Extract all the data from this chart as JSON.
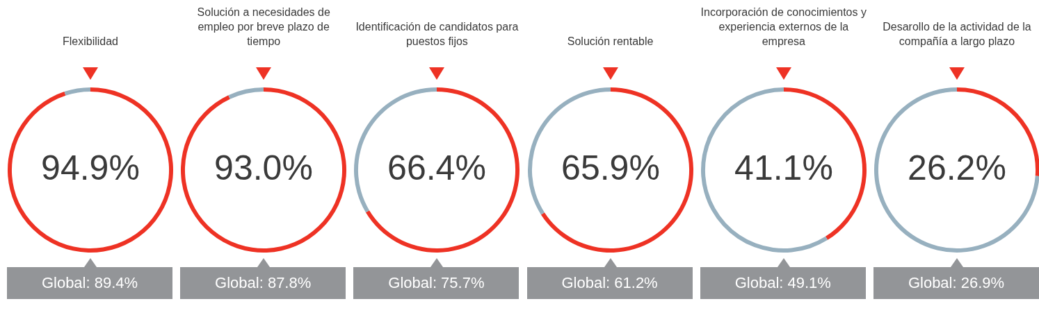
{
  "chart_data": [
    {
      "type": "donut",
      "title": "Flexibilidad",
      "categories": [
        null,
        null
      ],
      "values": [
        94.9,
        5.1
      ],
      "colors": [
        "#ee3224",
        "#97b0bf"
      ],
      "value_labels": [
        "94.9%",
        null
      ],
      "annotations": [
        "Global: 89.4%"
      ]
    },
    {
      "type": "donut",
      "title": "Solución a necesidades de empleo por breve plazo de tiempo",
      "categories": [
        null,
        null
      ],
      "values": [
        93.0,
        7.0
      ],
      "colors": [
        "#ee3224",
        "#97b0bf"
      ],
      "value_labels": [
        "93.0%",
        null
      ],
      "annotations": [
        "Global: 87.8%"
      ]
    },
    {
      "type": "donut",
      "title": "Identificación de candidatos para puestos fijos",
      "categories": [
        null,
        null
      ],
      "values": [
        66.4,
        33.6
      ],
      "colors": [
        "#ee3224",
        "#97b0bf"
      ],
      "value_labels": [
        "66.4%",
        null
      ],
      "annotations": [
        "Global: 75.7%"
      ]
    },
    {
      "type": "donut",
      "title": "Solución rentable",
      "categories": [
        null,
        null
      ],
      "values": [
        65.9,
        34.1
      ],
      "colors": [
        "#ee3224",
        "#97b0bf"
      ],
      "value_labels": [
        "65.9%",
        null
      ],
      "annotations": [
        "Global: 61.2%"
      ]
    },
    {
      "type": "donut",
      "title": "Incorporación de conocimientos y experiencia externos de la empresa",
      "categories": [
        null,
        null
      ],
      "values": [
        41.1,
        58.9
      ],
      "colors": [
        "#ee3224",
        "#97b0bf"
      ],
      "value_labels": [
        "41.1%",
        null
      ],
      "annotations": [
        "Global: 49.1%"
      ]
    },
    {
      "type": "donut",
      "title": "Desarollo de la actividad de la compañía a largo plazo",
      "categories": [
        null,
        null
      ],
      "values": [
        26.2,
        73.8
      ],
      "colors": [
        "#ee3224",
        "#97b0bf"
      ],
      "value_labels": [
        "26.2%",
        null
      ],
      "annotations": [
        "Global: 26.9%"
      ]
    }
  ]
}
